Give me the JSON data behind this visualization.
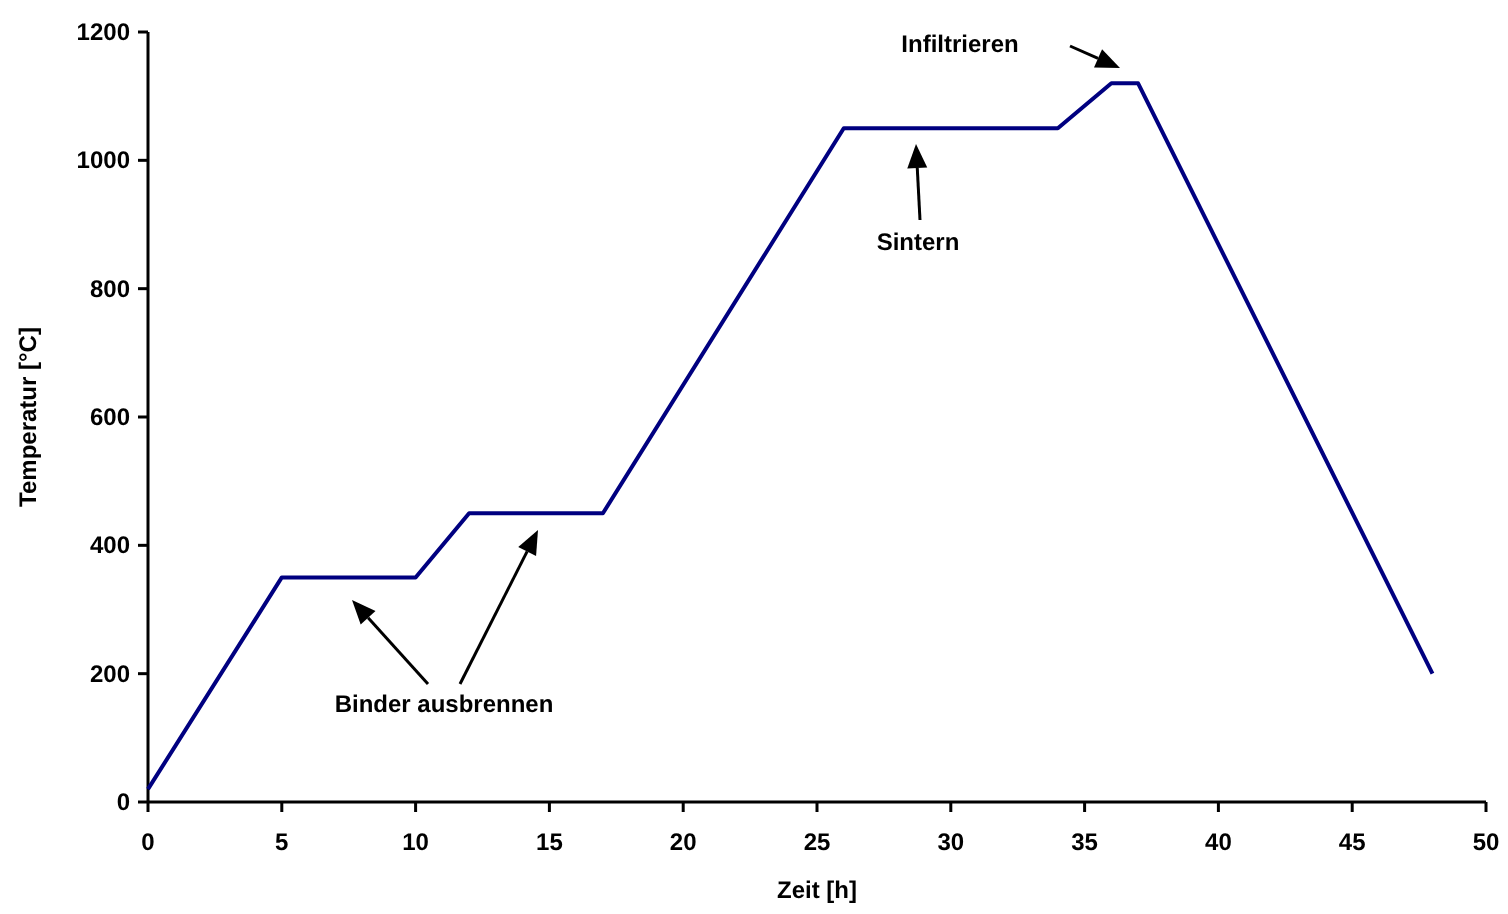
{
  "chart_data": {
    "type": "line",
    "xlabel": "Zeit [h]",
    "ylabel": "Temperatur [°C]",
    "x": [
      0,
      5,
      10,
      12,
      17,
      26,
      34,
      36,
      37,
      48
    ],
    "series": [
      {
        "color": "#000080",
        "values": [
          20,
          350,
          350,
          450,
          450,
          1050,
          1050,
          1120,
          1120,
          200
        ]
      }
    ],
    "xlim": [
      0,
      50
    ],
    "xticks": [
      0,
      5,
      10,
      15,
      20,
      25,
      30,
      35,
      40,
      45,
      50
    ],
    "ylim": [
      0,
      1200
    ],
    "yticks": [
      0,
      200,
      400,
      600,
      800,
      1000,
      1200
    ],
    "grid": false,
    "marker": "none",
    "line_style": "solid",
    "annotations": [
      "Binder ausbrennen",
      "Sintern",
      "Infiltrieren"
    ]
  }
}
